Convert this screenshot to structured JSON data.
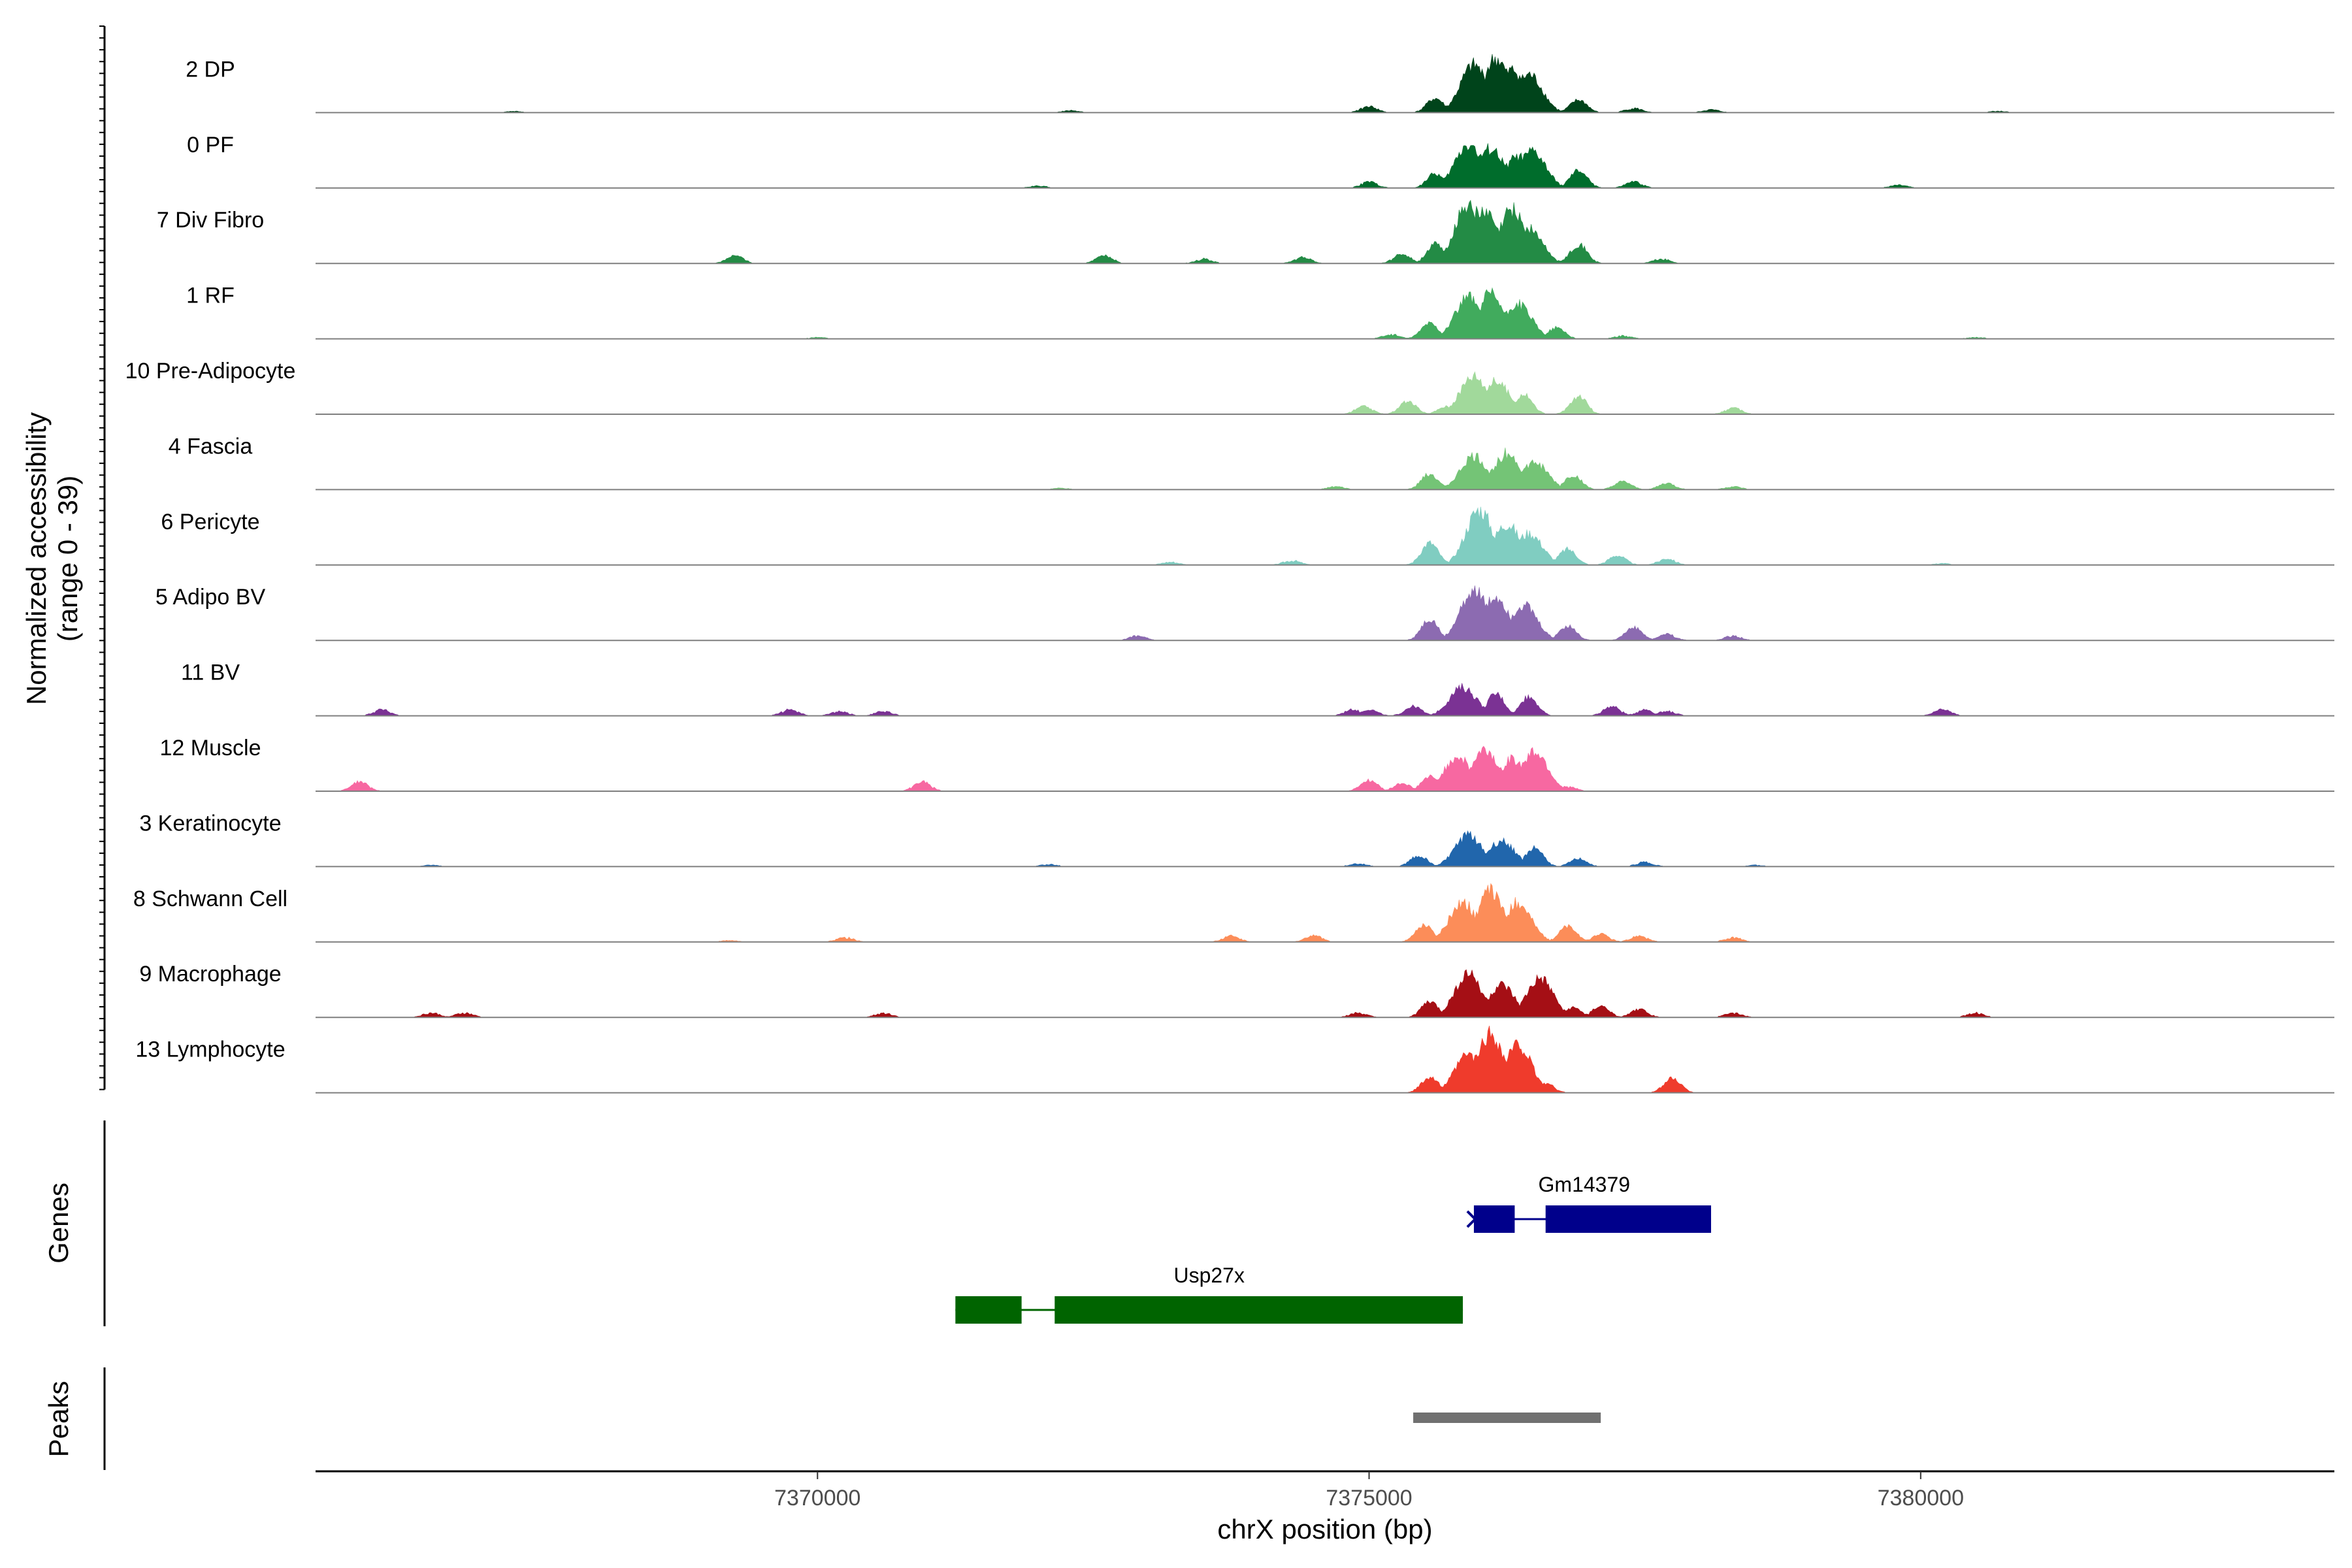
{
  "chart_data": {
    "type": "area",
    "xlabel": "chrX position (bp)",
    "ylabel": [
      "Normalized accessibility",
      "(range 0 - 39)"
    ],
    "yrange": [
      0,
      39
    ],
    "xlim": [
      7365450,
      7383750
    ],
    "xticks": [
      7370000,
      7375000,
      7380000
    ],
    "xtick_labels": [
      "7370000",
      "7375000",
      "7380000"
    ],
    "panel_labels": {
      "genes": "Genes",
      "peaks": "Peaks"
    },
    "tracks": [
      {
        "name": "2 DP",
        "color": "#00441b",
        "peaks": [
          [
            7375950,
            30
          ],
          [
            7376150,
            34
          ],
          [
            7376300,
            27
          ],
          [
            7376450,
            24
          ],
          [
            7375600,
            9
          ],
          [
            7376900,
            8
          ],
          [
            7375000,
            4
          ],
          [
            7377400,
            3
          ],
          [
            7378100,
            2
          ],
          [
            7372300,
            1.5
          ],
          [
            7367250,
            1
          ],
          [
            7380700,
            1
          ]
        ]
      },
      {
        "name": "0 PF",
        "color": "#006d2c",
        "peaks": [
          [
            7375900,
            28
          ],
          [
            7376100,
            25
          ],
          [
            7376350,
            20
          ],
          [
            7376480,
            23
          ],
          [
            7375600,
            9
          ],
          [
            7376900,
            11
          ],
          [
            7377400,
            4
          ],
          [
            7375000,
            4
          ],
          [
            7379800,
            2
          ],
          [
            7372000,
            1.5
          ]
        ]
      },
      {
        "name": "7 Div Fibro",
        "color": "#238b45",
        "peaks": [
          [
            7375900,
            38
          ],
          [
            7376050,
            32
          ],
          [
            7376300,
            34
          ],
          [
            7376450,
            22
          ],
          [
            7375600,
            12
          ],
          [
            7376900,
            12
          ],
          [
            7375300,
            6
          ],
          [
            7372600,
            5
          ],
          [
            7369250,
            5
          ],
          [
            7374400,
            4
          ],
          [
            7373500,
            3
          ],
          [
            7377650,
            3
          ]
        ]
      },
      {
        "name": "1 RF",
        "color": "#41ab5d",
        "peaks": [
          [
            7375900,
            26
          ],
          [
            7376100,
            28
          ],
          [
            7376350,
            22
          ],
          [
            7375550,
            10
          ],
          [
            7376700,
            7
          ],
          [
            7375200,
            3
          ],
          [
            7377300,
            2
          ],
          [
            7370000,
            1
          ],
          [
            7380500,
            1
          ]
        ]
      },
      {
        "name": "10 Pre-Adipocyte",
        "color": "#a1d99b",
        "peaks": [
          [
            7375950,
            25
          ],
          [
            7376150,
            21
          ],
          [
            7376400,
            13
          ],
          [
            7376900,
            11
          ],
          [
            7375350,
            8
          ],
          [
            7374950,
            5
          ],
          [
            7378300,
            4
          ],
          [
            7375700,
            5
          ]
        ]
      },
      {
        "name": "4 Fascia",
        "color": "#74c476",
        "peaks": [
          [
            7375950,
            21
          ],
          [
            7376250,
            23
          ],
          [
            7376500,
            17
          ],
          [
            7375550,
            10
          ],
          [
            7376850,
            9
          ],
          [
            7377300,
            5
          ],
          [
            7377700,
            4
          ],
          [
            7378300,
            2
          ],
          [
            7374700,
            2
          ],
          [
            7372200,
            1
          ]
        ]
      },
      {
        "name": "6 Pericyte",
        "color": "#80cdc1",
        "peaks": [
          [
            7376000,
            35
          ],
          [
            7376250,
            26
          ],
          [
            7376450,
            20
          ],
          [
            7375550,
            14
          ],
          [
            7376800,
            10
          ],
          [
            7377250,
            6
          ],
          [
            7377700,
            4
          ],
          [
            7374300,
            3
          ],
          [
            7373200,
            2
          ],
          [
            7380200,
            1
          ]
        ]
      },
      {
        "name": "5 Adipo BV",
        "color": "#8c6bb1",
        "peaks": [
          [
            7375950,
            32
          ],
          [
            7376150,
            27
          ],
          [
            7376400,
            22
          ],
          [
            7375550,
            13
          ],
          [
            7376800,
            9
          ],
          [
            7377400,
            8
          ],
          [
            7377700,
            4
          ],
          [
            7378300,
            3
          ],
          [
            7372900,
            3
          ]
        ]
      },
      {
        "name": "11 BV",
        "color": "#7b3294",
        "peaks": [
          [
            7375850,
            18
          ],
          [
            7376150,
            14
          ],
          [
            7376450,
            12
          ],
          [
            7375400,
            6
          ],
          [
            7374850,
            4
          ],
          [
            7375000,
            4
          ],
          [
            7377200,
            6
          ],
          [
            7377500,
            4
          ],
          [
            7377700,
            3
          ],
          [
            7370600,
            3
          ],
          [
            7369750,
            4
          ],
          [
            7366050,
            4
          ],
          [
            7380200,
            4
          ],
          [
            7370200,
            3
          ]
        ]
      },
      {
        "name": "12 Muscle",
        "color": "#f768a1",
        "peaks": [
          [
            7375800,
            22
          ],
          [
            7376050,
            26
          ],
          [
            7376500,
            25
          ],
          [
            7376300,
            20
          ],
          [
            7375550,
            9
          ],
          [
            7375000,
            7
          ],
          [
            7375300,
            5
          ],
          [
            7370950,
            6
          ],
          [
            7365850,
            6
          ],
          [
            7376800,
            3
          ]
        ]
      },
      {
        "name": "3 Keratinocyte",
        "color": "#2166ac",
        "peaks": [
          [
            7375900,
            20
          ],
          [
            7376200,
            16
          ],
          [
            7376500,
            12
          ],
          [
            7375450,
            7
          ],
          [
            7376900,
            5
          ],
          [
            7374900,
            2
          ],
          [
            7377500,
            3
          ],
          [
            7372100,
            1.5
          ],
          [
            7366500,
            1
          ],
          [
            7378500,
            1
          ]
        ]
      },
      {
        "name": "8 Schwann Cell",
        "color": "#fc8d59",
        "peaks": [
          [
            7375850,
            25
          ],
          [
            7376100,
            32
          ],
          [
            7376350,
            25
          ],
          [
            7375500,
            11
          ],
          [
            7376800,
            10
          ],
          [
            7377100,
            5
          ],
          [
            7377450,
            4
          ],
          [
            7374500,
            4
          ],
          [
            7373750,
            4
          ],
          [
            7370250,
            3
          ],
          [
            7378300,
            3
          ],
          [
            7369200,
            1
          ]
        ]
      },
      {
        "name": "9 Macrophage",
        "color": "#a50f15",
        "peaks": [
          [
            7375900,
            28
          ],
          [
            7376200,
            20
          ],
          [
            7376550,
            24
          ],
          [
            7375550,
            10
          ],
          [
            7377100,
            7
          ],
          [
            7377450,
            5
          ],
          [
            7376850,
            6
          ],
          [
            7370600,
            3
          ],
          [
            7366500,
            3
          ],
          [
            7366800,
            3
          ],
          [
            7380500,
            3
          ],
          [
            7378300,
            3
          ],
          [
            7374900,
            3
          ]
        ]
      },
      {
        "name": "13 Lymphocyte",
        "color": "#ef3b2c",
        "peaks": [
          [
            7376100,
            37
          ],
          [
            7376350,
            30
          ],
          [
            7375900,
            24
          ],
          [
            7375550,
            10
          ],
          [
            7376600,
            6
          ],
          [
            7377750,
            9
          ]
        ]
      }
    ],
    "genes": [
      {
        "name": "Gm14379",
        "color": "#00008b",
        "row": 1,
        "start": 7375950,
        "end": 7378100,
        "exons": [
          [
            7375950,
            7376320
          ],
          [
            7376600,
            7378100
          ]
        ]
      },
      {
        "name": "Usp27x",
        "color": "#006400",
        "row": 2,
        "start": 7371250,
        "end": 7375850,
        "exons": [
          [
            7371250,
            7371850
          ],
          [
            7372150,
            7375850
          ]
        ]
      }
    ],
    "peak_regions": [
      {
        "start": 7375400,
        "end": 7377100,
        "color": "#707070"
      }
    ]
  }
}
